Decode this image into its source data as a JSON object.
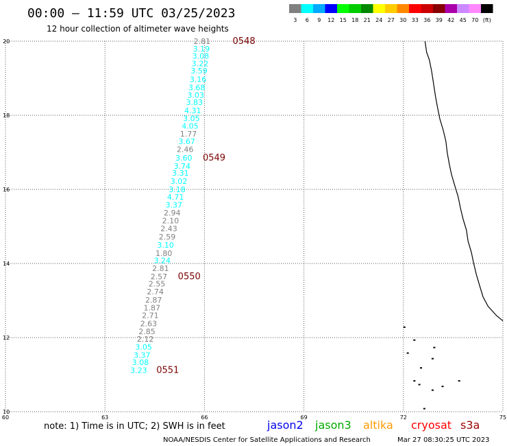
{
  "header": {
    "title": "00:00 – 11:59 UTC 03/25/2023",
    "subtitle": "12 hour collection of altimeter wave heights"
  },
  "color_scale": {
    "labels": [
      "3",
      "6",
      "9",
      "12",
      "15",
      "18",
      "21",
      "24",
      "27",
      "30",
      "33",
      "36",
      "39",
      "42",
      "45",
      "70",
      "(ft)"
    ],
    "colors": [
      "#808080",
      "#00ffff",
      "#00aaff",
      "#0000ff",
      "#00ff00",
      "#00cc00",
      "#008800",
      "#ffff00",
      "#ffcc00",
      "#ff8800",
      "#ff0000",
      "#cc0000",
      "#880000",
      "#aa00aa",
      "#cc88ff",
      "#ff88ff",
      "#000000"
    ]
  },
  "chart_data": {
    "type": "scatter",
    "xlabel": "",
    "ylabel": "",
    "xlim": [
      60,
      75
    ],
    "ylim": [
      10,
      20
    ],
    "x_ticks": [
      "60",
      "63",
      "66",
      "69",
      "72",
      "75"
    ],
    "y_ticks": [
      "10",
      "12",
      "14",
      "16",
      "18",
      "20"
    ],
    "grid": true,
    "points": [
      {
        "x": 66.18,
        "y": 20.0,
        "label": "2.81",
        "color": "#808080"
      },
      {
        "x": 66.16,
        "y": 19.8,
        "label": "3.19",
        "color": "#00ffff"
      },
      {
        "x": 66.14,
        "y": 19.6,
        "label": "3.08",
        "color": "#00ffff"
      },
      {
        "x": 66.12,
        "y": 19.4,
        "label": "3.22",
        "color": "#00ffff"
      },
      {
        "x": 66.09,
        "y": 19.2,
        "label": "3.59",
        "color": "#00ffff"
      },
      {
        "x": 66.06,
        "y": 18.97,
        "label": "3.16",
        "color": "#00ffff"
      },
      {
        "x": 66.02,
        "y": 18.75,
        "label": "3.68",
        "color": "#00ffff"
      },
      {
        "x": 65.99,
        "y": 18.55,
        "label": "3.03",
        "color": "#00ffff"
      },
      {
        "x": 65.95,
        "y": 18.35,
        "label": "3.83",
        "color": "#00ffff"
      },
      {
        "x": 65.9,
        "y": 18.13,
        "label": "4.31",
        "color": "#00ffff"
      },
      {
        "x": 65.86,
        "y": 17.92,
        "label": "3.05",
        "color": "#00ffff"
      },
      {
        "x": 65.82,
        "y": 17.71,
        "label": "4.05",
        "color": "#00ffff"
      },
      {
        "x": 65.77,
        "y": 17.5,
        "label": "1.77",
        "color": "#808080"
      },
      {
        "x": 65.72,
        "y": 17.3,
        "label": "3.67",
        "color": "#00ffff"
      },
      {
        "x": 65.67,
        "y": 17.08,
        "label": "2.46",
        "color": "#808080"
      },
      {
        "x": 65.63,
        "y": 16.85,
        "label": "3.60",
        "color": "#00ffff"
      },
      {
        "x": 65.58,
        "y": 16.63,
        "label": "3.74",
        "color": "#00ffff"
      },
      {
        "x": 65.53,
        "y": 16.44,
        "label": "3.31",
        "color": "#00ffff"
      },
      {
        "x": 65.48,
        "y": 16.22,
        "label": "3.02",
        "color": "#00ffff"
      },
      {
        "x": 65.43,
        "y": 16.0,
        "label": "3.18",
        "color": "#00ffff"
      },
      {
        "x": 65.38,
        "y": 15.8,
        "label": "4.71",
        "color": "#00ffff"
      },
      {
        "x": 65.33,
        "y": 15.58,
        "label": "3.37",
        "color": "#00ffff"
      },
      {
        "x": 65.28,
        "y": 15.37,
        "label": "2.94",
        "color": "#808080"
      },
      {
        "x": 65.23,
        "y": 15.16,
        "label": "2.10",
        "color": "#808080"
      },
      {
        "x": 65.18,
        "y": 14.94,
        "label": "2.43",
        "color": "#808080"
      },
      {
        "x": 65.13,
        "y": 14.72,
        "label": "2.59",
        "color": "#808080"
      },
      {
        "x": 65.08,
        "y": 14.5,
        "label": "3.10",
        "color": "#00ffff"
      },
      {
        "x": 65.03,
        "y": 14.28,
        "label": "1.80",
        "color": "#808080"
      },
      {
        "x": 64.98,
        "y": 14.08,
        "label": "3.24",
        "color": "#00ffff"
      },
      {
        "x": 64.93,
        "y": 13.87,
        "label": "2.81",
        "color": "#808080"
      },
      {
        "x": 64.88,
        "y": 13.65,
        "label": "2.57",
        "color": "#808080"
      },
      {
        "x": 64.82,
        "y": 13.45,
        "label": "2.55",
        "color": "#808080"
      },
      {
        "x": 64.77,
        "y": 13.24,
        "label": "2.74",
        "color": "#808080"
      },
      {
        "x": 64.72,
        "y": 13.02,
        "label": "2.87",
        "color": "#808080"
      },
      {
        "x": 64.67,
        "y": 12.81,
        "label": "1.87",
        "color": "#808080"
      },
      {
        "x": 64.62,
        "y": 12.6,
        "label": "2.71",
        "color": "#808080"
      },
      {
        "x": 64.57,
        "y": 12.38,
        "label": "2.63",
        "color": "#808080"
      },
      {
        "x": 64.52,
        "y": 12.17,
        "label": "2.85",
        "color": "#808080"
      },
      {
        "x": 64.47,
        "y": 11.96,
        "label": "2.12",
        "color": "#808080"
      },
      {
        "x": 64.42,
        "y": 11.75,
        "label": "3.05",
        "color": "#00ffff"
      },
      {
        "x": 64.37,
        "y": 11.53,
        "label": "3.37",
        "color": "#00ffff"
      },
      {
        "x": 64.32,
        "y": 11.33,
        "label": "3.08",
        "color": "#00ffff"
      },
      {
        "x": 64.27,
        "y": 11.12,
        "label": "3.23",
        "color": "#00ffff"
      }
    ],
    "time_labels": [
      {
        "x": 66.85,
        "y": 20.0,
        "label": "0548"
      },
      {
        "x": 65.95,
        "y": 16.85,
        "label": "0549"
      },
      {
        "x": 65.2,
        "y": 13.65,
        "label": "0550"
      },
      {
        "x": 64.55,
        "y": 11.12,
        "label": "0551"
      }
    ]
  },
  "coast": [
    [
      72.65,
      20.0
    ],
    [
      72.7,
      19.7
    ],
    [
      72.78,
      19.5
    ],
    [
      72.85,
      19.2
    ],
    [
      72.9,
      18.9
    ],
    [
      72.97,
      18.5
    ],
    [
      73.03,
      18.2
    ],
    [
      73.1,
      17.9
    ],
    [
      73.2,
      17.6
    ],
    [
      73.28,
      17.3
    ],
    [
      73.32,
      17.0
    ],
    [
      73.38,
      16.7
    ],
    [
      73.45,
      16.4
    ],
    [
      73.55,
      16.1
    ],
    [
      73.65,
      15.8
    ],
    [
      73.72,
      15.5
    ],
    [
      73.8,
      15.2
    ],
    [
      73.9,
      14.9
    ],
    [
      73.95,
      14.6
    ],
    [
      74.05,
      14.3
    ],
    [
      74.12,
      14.0
    ],
    [
      74.2,
      13.7
    ],
    [
      74.3,
      13.4
    ],
    [
      74.4,
      13.1
    ],
    [
      74.55,
      12.85
    ],
    [
      74.8,
      12.6
    ],
    [
      75.0,
      12.45
    ]
  ],
  "islands": [
    [
      72.0,
      12.3
    ],
    [
      72.3,
      11.95
    ],
    [
      72.1,
      11.6
    ],
    [
      72.85,
      11.45
    ],
    [
      72.5,
      11.2
    ],
    [
      72.3,
      10.85
    ],
    [
      72.45,
      10.75
    ],
    [
      73.65,
      10.85
    ],
    [
      72.85,
      10.6
    ],
    [
      72.6,
      10.1
    ],
    [
      73.15,
      10.7
    ],
    [
      72.9,
      11.75
    ]
  ],
  "footer": {
    "note": "note: 1) Time is in UTC; 2) SWH is in feet",
    "satellites": [
      {
        "name": "jason2",
        "color": "#0000ee"
      },
      {
        "name": "jason3",
        "color": "#00aa00"
      },
      {
        "name": "altika",
        "color": "#ff9900"
      },
      {
        "name": "cryosat",
        "color": "#ff0000"
      },
      {
        "name": "s3a",
        "color": "#990000"
      }
    ],
    "credit": "NOAA/NESDIS Center for Satellite Applications and Research",
    "timestamp": "Mar 27 08:30:25 UTC 2023"
  }
}
